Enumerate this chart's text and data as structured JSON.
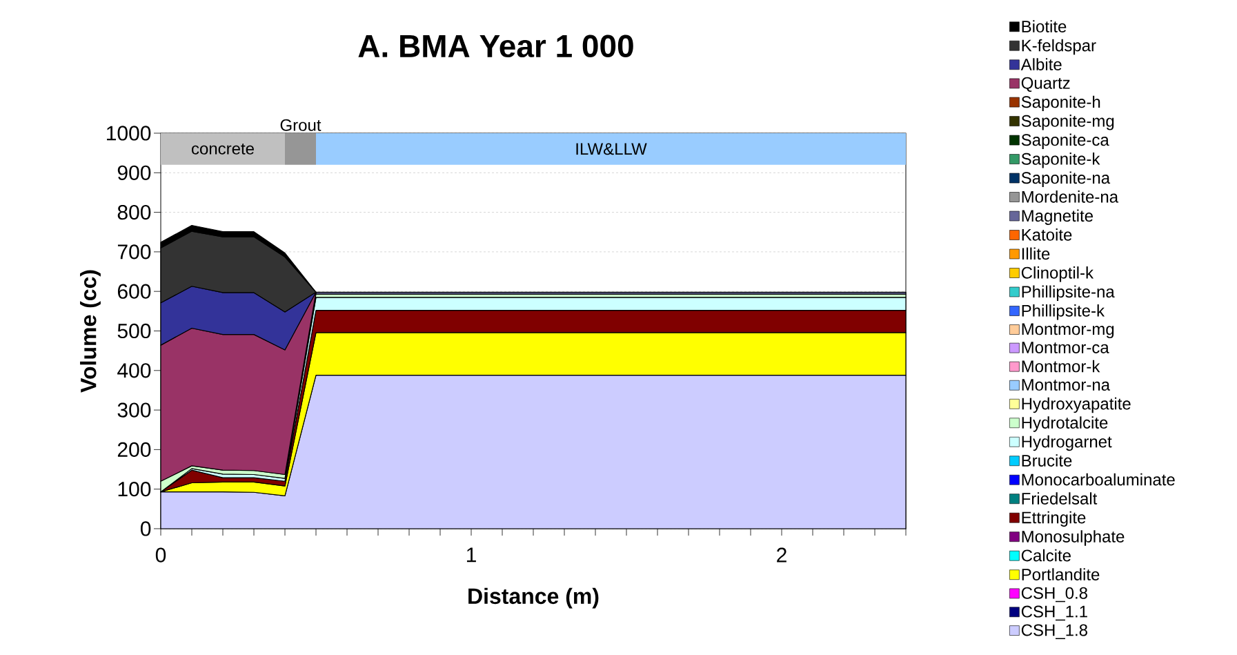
{
  "chart_data": {
    "type": "area",
    "stacked": true,
    "title": "A. BMA Year 1 000",
    "xlabel": "Distance (m)",
    "ylabel": "Volume (cc)",
    "x": [
      0,
      0.1,
      0.2,
      0.3,
      0.4,
      0.5,
      0.6,
      0.7,
      0.8,
      0.9,
      1.0,
      1.1,
      1.2,
      1.3,
      1.4,
      1.5,
      1.6,
      1.7,
      1.8,
      1.9,
      2.0,
      2.1,
      2.2,
      2.3,
      2.4
    ],
    "xlim": [
      0,
      2.4
    ],
    "ylim": [
      0,
      1000
    ],
    "xticks": [
      0,
      {
        "value": 0.1,
        "label": null
      },
      {
        "value": 0.2,
        "label": null
      },
      {
        "value": 0.3,
        "label": null
      },
      {
        "value": 0.4,
        "label": null
      },
      {
        "value": 0.5,
        "label": null
      },
      {
        "value": 0.6,
        "label": null
      },
      {
        "value": 0.7,
        "label": null
      },
      {
        "value": 0.8,
        "label": null
      },
      {
        "value": 0.9,
        "label": null
      },
      1,
      {
        "value": 1.1,
        "label": null
      },
      {
        "value": 1.2,
        "label": null
      },
      {
        "value": 1.3,
        "label": null
      },
      {
        "value": 1.4,
        "label": null
      },
      {
        "value": 1.5,
        "label": null
      },
      {
        "value": 1.6,
        "label": null
      },
      {
        "value": 1.7,
        "label": null
      },
      {
        "value": 1.8,
        "label": null
      },
      {
        "value": 1.9,
        "label": null
      },
      2,
      {
        "value": 2.1,
        "label": null
      },
      {
        "value": 2.2,
        "label": null
      },
      {
        "value": 2.3,
        "label": null
      },
      {
        "value": 2.4,
        "label": null
      }
    ],
    "yticks": [
      0,
      100,
      200,
      300,
      400,
      500,
      600,
      700,
      800,
      900,
      1000
    ],
    "grid": "y",
    "legend": "right",
    "bands": [
      {
        "axis": "x",
        "from": 0,
        "to": 0.4,
        "label": "concrete",
        "color": "#c0c0c0"
      },
      {
        "axis": "x",
        "from": 0.4,
        "to": 0.5,
        "label": "Grout",
        "color": "#969696"
      },
      {
        "axis": "x",
        "from": 0.5,
        "to": 2.4,
        "label": "ILW&LLW",
        "color": "#99ccff"
      }
    ],
    "series": [
      {
        "name": "CSH_1.8",
        "color": "#ccccff",
        "values": [
          93,
          93,
          93,
          92,
          83,
          388,
          388,
          388,
          388,
          388,
          388,
          388,
          388,
          388,
          388,
          388,
          388,
          388,
          388,
          388,
          388,
          388,
          388,
          388,
          388
        ]
      },
      {
        "name": "CSH_1.1",
        "color": "#000080",
        "values": [
          null,
          null,
          null,
          null,
          null,
          null,
          null,
          null,
          null,
          null,
          null,
          null,
          null,
          null,
          null,
          null,
          null,
          null,
          null,
          null,
          null,
          null,
          null,
          null,
          null
        ]
      },
      {
        "name": "CSH_0.8",
        "color": "#ff00ff",
        "values": [
          null,
          null,
          null,
          null,
          null,
          null,
          null,
          null,
          null,
          null,
          null,
          null,
          null,
          null,
          null,
          null,
          null,
          null,
          null,
          null,
          null,
          null,
          null,
          null,
          null
        ]
      },
      {
        "name": "Portlandite",
        "color": "#ffff00",
        "values": [
          0,
          23,
          25,
          26,
          25,
          108,
          108,
          108,
          108,
          108,
          108,
          108,
          108,
          108,
          108,
          108,
          108,
          108,
          108,
          108,
          108,
          108,
          108,
          108,
          108
        ]
      },
      {
        "name": "Calcite",
        "color": "#00ffff",
        "values": [
          null,
          null,
          null,
          null,
          null,
          null,
          null,
          null,
          null,
          null,
          null,
          null,
          null,
          null,
          null,
          null,
          null,
          null,
          null,
          null,
          null,
          null,
          null,
          null,
          null
        ]
      },
      {
        "name": "Monosulphate",
        "color": "#800080",
        "values": [
          null,
          null,
          null,
          null,
          null,
          null,
          null,
          null,
          null,
          null,
          null,
          null,
          null,
          null,
          null,
          null,
          null,
          null,
          null,
          null,
          null,
          null,
          null,
          null,
          null
        ]
      },
      {
        "name": "Ettringite",
        "color": "#800000",
        "values": [
          0,
          32,
          11,
          11,
          12,
          56,
          56,
          56,
          56,
          56,
          56,
          56,
          56,
          56,
          56,
          56,
          56,
          56,
          56,
          56,
          56,
          56,
          56,
          56,
          56
        ]
      },
      {
        "name": "Friedelsalt",
        "color": "#008080",
        "values": [
          null,
          null,
          null,
          null,
          null,
          null,
          null,
          null,
          null,
          null,
          null,
          null,
          null,
          null,
          null,
          null,
          null,
          null,
          null,
          null,
          null,
          null,
          null,
          null,
          null
        ]
      },
      {
        "name": "Monocarboaluminate",
        "color": "#0000ff",
        "values": [
          null,
          null,
          null,
          null,
          null,
          null,
          null,
          null,
          null,
          null,
          null,
          null,
          null,
          null,
          null,
          null,
          null,
          null,
          null,
          null,
          null,
          null,
          null,
          null,
          null
        ]
      },
      {
        "name": "Brucite",
        "color": "#00ccff",
        "values": [
          null,
          null,
          null,
          null,
          null,
          null,
          null,
          null,
          null,
          null,
          null,
          null,
          null,
          null,
          null,
          null,
          null,
          null,
          null,
          null,
          null,
          null,
          null,
          null,
          null
        ]
      },
      {
        "name": "Hydrogarnet",
        "color": "#ccffff",
        "values": [
          0,
          4,
          9,
          8,
          7,
          33,
          33,
          33,
          33,
          33,
          33,
          33,
          33,
          33,
          33,
          33,
          33,
          33,
          33,
          33,
          33,
          33,
          33,
          33,
          33
        ]
      },
      {
        "name": "Hydrotalcite",
        "color": "#ccffcc",
        "values": [
          27,
          7,
          10,
          10,
          10,
          8,
          8,
          8,
          8,
          8,
          8,
          8,
          8,
          8,
          8,
          8,
          8,
          8,
          8,
          8,
          8,
          8,
          8,
          8,
          8
        ]
      },
      {
        "name": "Hydroxyapatite",
        "color": "#ffff99",
        "values": [
          null,
          null,
          null,
          null,
          null,
          null,
          null,
          null,
          null,
          null,
          null,
          null,
          null,
          null,
          null,
          null,
          null,
          null,
          null,
          null,
          null,
          null,
          null,
          null,
          null
        ]
      },
      {
        "name": "Montmor-na",
        "color": "#99ccff",
        "values": [
          null,
          null,
          null,
          null,
          null,
          null,
          null,
          null,
          null,
          null,
          null,
          null,
          null,
          null,
          null,
          null,
          null,
          null,
          null,
          null,
          null,
          null,
          null,
          null,
          null
        ]
      },
      {
        "name": "Montmor-k",
        "color": "#ff99cc",
        "values": [
          null,
          null,
          null,
          null,
          null,
          null,
          null,
          null,
          null,
          null,
          null,
          null,
          null,
          null,
          null,
          null,
          null,
          null,
          null,
          null,
          null,
          null,
          null,
          null,
          null
        ]
      },
      {
        "name": "Montmor-ca",
        "color": "#cc99ff",
        "values": [
          null,
          null,
          null,
          null,
          null,
          null,
          null,
          null,
          null,
          null,
          null,
          null,
          null,
          null,
          null,
          null,
          null,
          null,
          null,
          null,
          null,
          null,
          null,
          null,
          null
        ]
      },
      {
        "name": "Montmor-mg",
        "color": "#ffcc99",
        "values": [
          null,
          null,
          null,
          null,
          null,
          null,
          null,
          null,
          null,
          null,
          null,
          null,
          null,
          null,
          null,
          null,
          null,
          null,
          null,
          null,
          null,
          null,
          null,
          null,
          null
        ]
      },
      {
        "name": "Phillipsite-k",
        "color": "#3366ff",
        "values": [
          null,
          null,
          null,
          null,
          null,
          null,
          null,
          null,
          null,
          null,
          null,
          null,
          null,
          null,
          null,
          null,
          null,
          null,
          null,
          null,
          null,
          null,
          null,
          null,
          null
        ]
      },
      {
        "name": "Phillipsite-na",
        "color": "#33cccc",
        "values": [
          null,
          null,
          null,
          null,
          null,
          null,
          null,
          null,
          null,
          null,
          null,
          null,
          null,
          null,
          null,
          null,
          null,
          null,
          null,
          null,
          null,
          null,
          null,
          null,
          null
        ]
      },
      {
        "name": "Clinoptil-k",
        "color": "#ffcc00",
        "values": [
          null,
          null,
          null,
          null,
          null,
          null,
          null,
          null,
          null,
          null,
          null,
          null,
          null,
          null,
          null,
          null,
          null,
          null,
          null,
          null,
          null,
          null,
          null,
          null,
          null
        ]
      },
      {
        "name": "Illite",
        "color": "#ff9900",
        "values": [
          null,
          null,
          null,
          null,
          null,
          null,
          null,
          null,
          null,
          null,
          null,
          null,
          null,
          null,
          null,
          null,
          null,
          null,
          null,
          null,
          null,
          null,
          null,
          null,
          null
        ]
      },
      {
        "name": "Katoite",
        "color": "#ff6600",
        "values": [
          null,
          null,
          null,
          null,
          null,
          null,
          null,
          null,
          null,
          null,
          null,
          null,
          null,
          null,
          null,
          null,
          null,
          null,
          null,
          null,
          null,
          null,
          null,
          null,
          null
        ]
      },
      {
        "name": "Magnetite",
        "color": "#666699",
        "values": [
          null,
          null,
          null,
          null,
          null,
          5,
          5,
          5,
          5,
          5,
          5,
          5,
          5,
          5,
          5,
          5,
          5,
          5,
          5,
          5,
          5,
          5,
          5,
          5,
          5
        ]
      },
      {
        "name": "Mordenite-na",
        "color": "#969696",
        "values": [
          null,
          null,
          null,
          null,
          null,
          null,
          null,
          null,
          null,
          null,
          null,
          null,
          null,
          null,
          null,
          null,
          null,
          null,
          null,
          null,
          null,
          null,
          null,
          null,
          null
        ]
      },
      {
        "name": "Saponite-na",
        "color": "#003366",
        "values": [
          null,
          null,
          null,
          null,
          null,
          null,
          null,
          null,
          null,
          null,
          null,
          null,
          null,
          null,
          null,
          null,
          null,
          null,
          null,
          null,
          null,
          null,
          null,
          null,
          null
        ]
      },
      {
        "name": "Saponite-k",
        "color": "#339966",
        "values": [
          null,
          null,
          null,
          null,
          null,
          null,
          null,
          null,
          null,
          null,
          null,
          null,
          null,
          null,
          null,
          null,
          null,
          null,
          null,
          null,
          null,
          null,
          null,
          null,
          null
        ]
      },
      {
        "name": "Saponite-ca",
        "color": "#003300",
        "values": [
          null,
          null,
          null,
          null,
          null,
          null,
          null,
          null,
          null,
          null,
          null,
          null,
          null,
          null,
          null,
          null,
          null,
          null,
          null,
          null,
          null,
          null,
          null,
          null,
          null
        ]
      },
      {
        "name": "Saponite-mg",
        "color": "#333300",
        "values": [
          null,
          null,
          null,
          null,
          null,
          null,
          null,
          null,
          null,
          null,
          null,
          null,
          null,
          null,
          null,
          null,
          null,
          null,
          null,
          null,
          null,
          null,
          null,
          null,
          null
        ]
      },
      {
        "name": "Saponite-h",
        "color": "#993300",
        "values": [
          null,
          null,
          null,
          null,
          null,
          null,
          null,
          null,
          null,
          null,
          null,
          null,
          null,
          null,
          null,
          null,
          null,
          null,
          null,
          null,
          null,
          null,
          null,
          null,
          null
        ]
      },
      {
        "name": "Quartz",
        "color": "#993366",
        "values": [
          344,
          348,
          343,
          344,
          315,
          0,
          null,
          null,
          null,
          null,
          null,
          null,
          null,
          null,
          null,
          null,
          null,
          null,
          null,
          null,
          null,
          null,
          null,
          null,
          null
        ]
      },
      {
        "name": "Albite",
        "color": "#333399",
        "values": [
          107,
          106,
          106,
          106,
          96,
          0,
          null,
          null,
          null,
          null,
          null,
          null,
          null,
          null,
          null,
          null,
          null,
          null,
          null,
          null,
          null,
          null,
          null,
          null,
          null
        ]
      },
      {
        "name": "K-feldspar",
        "color": "#333333",
        "values": [
          139,
          139,
          141,
          141,
          139,
          0,
          null,
          null,
          null,
          null,
          null,
          null,
          null,
          null,
          null,
          null,
          null,
          null,
          null,
          null,
          null,
          null,
          null,
          null,
          null
        ]
      },
      {
        "name": "Biotite",
        "color": "#000000",
        "values": [
          14,
          15,
          13,
          13,
          10,
          0,
          null,
          null,
          null,
          null,
          null,
          null,
          null,
          null,
          null,
          null,
          null,
          null,
          null,
          null,
          null,
          null,
          null,
          null,
          null
        ]
      }
    ]
  }
}
